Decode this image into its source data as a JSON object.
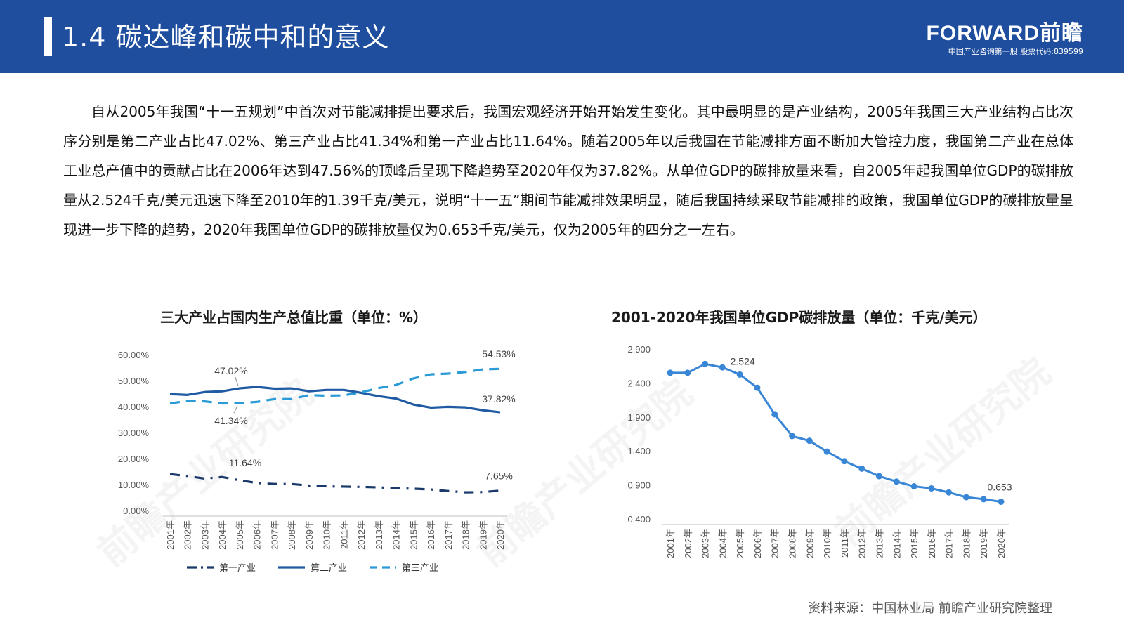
{
  "header": {
    "title": "1.4  碳达峰和碳中和的意义",
    "logo_brand": "FORWARD前瞻",
    "logo_tagline": "中国产业咨询第一股  股票代码:839599",
    "bg_color": "#1f4e9e"
  },
  "paragraph": "自从2005年我国“十一五规划”中首次对节能减排提出要求后，我国宏观经济开始开始发生变化。其中最明显的是产业结构，2005年我国三大产业结构占比次序分别是第二产业占比47.02%、第三产业占比41.34%和第一产业占比11.64%。随着2005年以后我国在节能减排方面不断加大管控力度，我国第二产业在总体工业总产值中的贡献占比在2006年达到47.56%的顶峰后呈现下降趋势至2020年仅为37.82%。从单位GDP的碳排放量来看，自2005年起我国单位GDP的碳排放量从2.524千克/美元迅速下降至2010年的1.39千克/美元，说明“十一五”期间节能减排效果明显，随后我国持续采取节能减排的政策，我国单位GDP的碳排放量呈现进一步下降的趋势，2020年我国单位GDP的碳排放量仅为0.653千克/美元，仅为2005年的四分之一左右。",
  "watermark": "前瞻产业研究院",
  "source": "资料来源：中国林业局 前瞻产业研究院整理",
  "chart_data": [
    {
      "type": "line",
      "title": "三大产业占国内生产总值比重（单位：%）",
      "x": [
        "2001年",
        "2002年",
        "2003年",
        "2004年",
        "2005年",
        "2006年",
        "2007年",
        "2008年",
        "2009年",
        "2010年",
        "2011年",
        "2012年",
        "2013年",
        "2014年",
        "2015年",
        "2016年",
        "2017年",
        "2018年",
        "2019年",
        "2020年"
      ],
      "ylim": [
        0,
        60
      ],
      "yticks": [
        "0.00%",
        "10.00%",
        "20.00%",
        "30.00%",
        "40.00%",
        "50.00%",
        "60.00%"
      ],
      "legend_position": "bottom",
      "grid": false,
      "series": [
        {
          "name": "第一产业",
          "color": "#1b3a6b",
          "style": "dash-dot",
          "values": [
            14.0,
            13.3,
            12.3,
            12.9,
            11.64,
            10.6,
            10.2,
            10.2,
            9.6,
            9.3,
            9.2,
            9.1,
            8.9,
            8.6,
            8.4,
            8.1,
            7.5,
            7.0,
            7.1,
            7.65
          ]
        },
        {
          "name": "第二产业",
          "color": "#1f5aa3",
          "style": "solid",
          "values": [
            44.8,
            44.5,
            45.6,
            45.9,
            47.02,
            47.56,
            46.9,
            47.0,
            45.9,
            46.4,
            46.4,
            45.3,
            44.0,
            43.1,
            40.8,
            39.6,
            39.9,
            39.7,
            38.6,
            37.82
          ]
        },
        {
          "name": "第三产业",
          "color": "#2a9bd6",
          "style": "dashed",
          "values": [
            41.2,
            42.2,
            42.0,
            41.2,
            41.34,
            41.8,
            42.9,
            42.9,
            44.4,
            44.2,
            44.3,
            45.5,
            47.1,
            48.3,
            50.8,
            52.4,
            52.7,
            53.3,
            54.3,
            54.53
          ]
        }
      ],
      "annotations": [
        "47.02%",
        "41.34%",
        "11.64%",
        "54.53%",
        "37.82%",
        "7.65%"
      ]
    },
    {
      "type": "line",
      "title": "2001-2020年我国单位GDP碳排放量（单位：千克/美元）",
      "x": [
        "2001年",
        "2002年",
        "2003年",
        "2004年",
        "2005年",
        "2006年",
        "2007年",
        "2008年",
        "2009年",
        "2010年",
        "2011年",
        "2012年",
        "2013年",
        "2014年",
        "2015年",
        "2016年",
        "2017年",
        "2018年",
        "2019年",
        "2020年"
      ],
      "ylim": [
        0.4,
        2.9
      ],
      "yticks": [
        "0.400",
        "0.900",
        "1.400",
        "1.900",
        "2.400",
        "2.900"
      ],
      "grid": false,
      "series": [
        {
          "name": "",
          "color": "#3a86d6",
          "style": "solid-markers",
          "values": [
            2.55,
            2.55,
            2.68,
            2.63,
            2.524,
            2.33,
            1.94,
            1.62,
            1.55,
            1.39,
            1.25,
            1.14,
            1.03,
            0.95,
            0.88,
            0.85,
            0.79,
            0.72,
            0.69,
            0.653
          ]
        }
      ],
      "annotations": [
        "2.524",
        "0.653"
      ]
    }
  ]
}
